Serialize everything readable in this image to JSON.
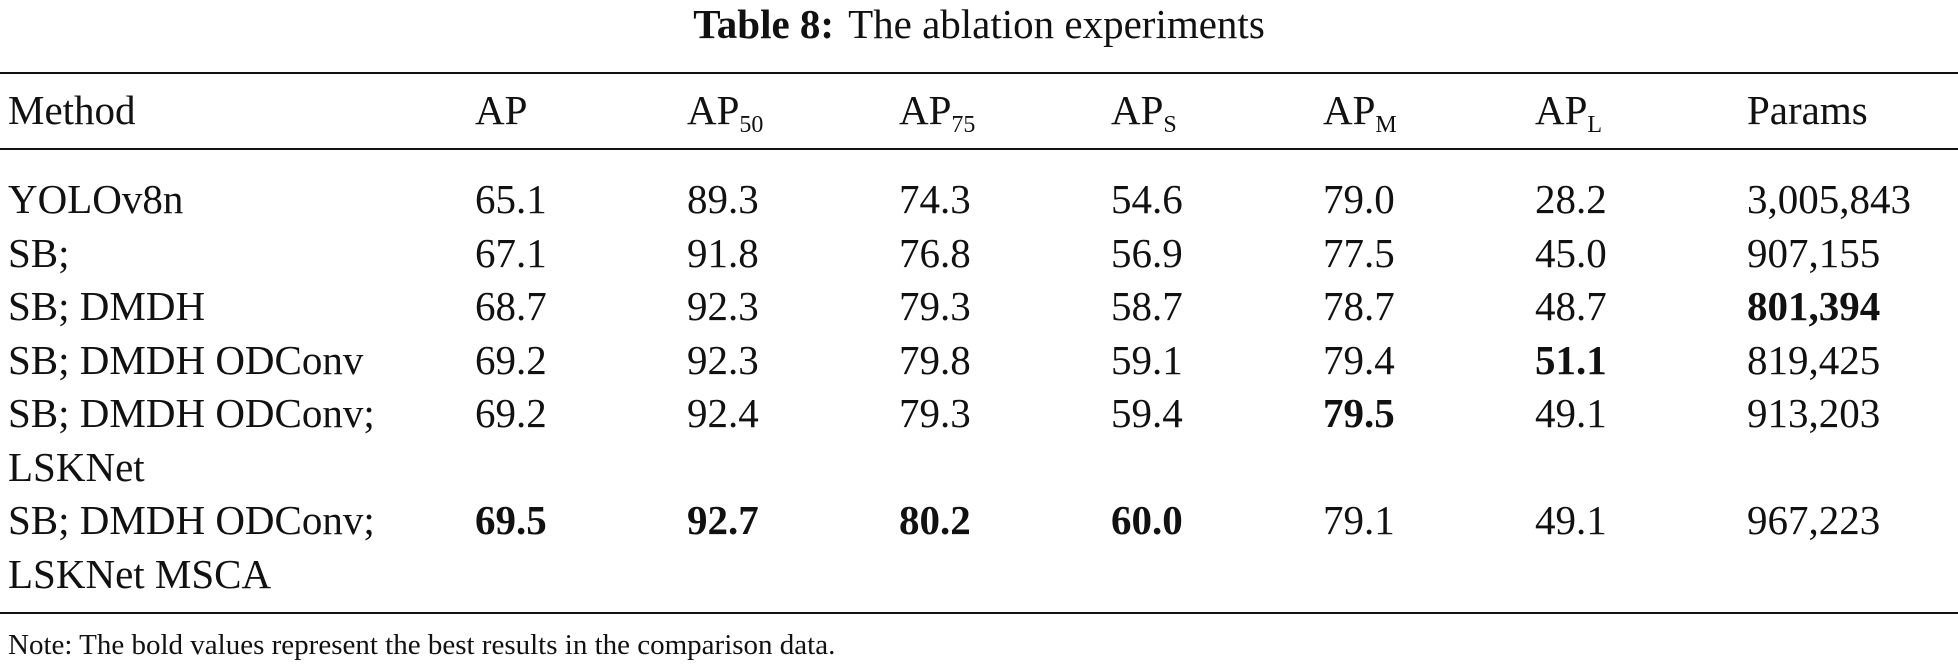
{
  "caption": {
    "label": "Table 8:",
    "text": "The ablation experiments"
  },
  "table": {
    "headers": [
      {
        "main": "Method",
        "sub": ""
      },
      {
        "main": "AP",
        "sub": ""
      },
      {
        "main": "AP",
        "sub": "50"
      },
      {
        "main": "AP",
        "sub": "75"
      },
      {
        "main": "AP",
        "sub": "S"
      },
      {
        "main": "AP",
        "sub": "M"
      },
      {
        "main": "AP",
        "sub": "L"
      },
      {
        "main": "Params",
        "sub": ""
      }
    ],
    "rows": [
      {
        "method": "YOLOv8n",
        "values": [
          "65.1",
          "89.3",
          "74.3",
          "54.6",
          "79.0",
          "28.2",
          "3,005,843"
        ],
        "bold": []
      },
      {
        "method": "SB;",
        "values": [
          "67.1",
          "91.8",
          "76.8",
          "56.9",
          "77.5",
          "45.0",
          "907,155"
        ],
        "bold": []
      },
      {
        "method": "SB; DMDH",
        "values": [
          "68.7",
          "92.3",
          "79.3",
          "58.7",
          "78.7",
          "48.7",
          "801,394"
        ],
        "bold": [
          6
        ]
      },
      {
        "method": "SB; DMDH ODConv",
        "values": [
          "69.2",
          "92.3",
          "79.8",
          "59.1",
          "79.4",
          "51.1",
          "819,425"
        ],
        "bold": [
          5
        ]
      },
      {
        "method": "SB; DMDH ODConv; LSKNet",
        "values": [
          "69.2",
          "92.4",
          "79.3",
          "59.4",
          "79.5",
          "49.1",
          "913,203"
        ],
        "bold": [
          4
        ]
      },
      {
        "method": "SB; DMDH ODConv; LSKNet MSCA",
        "values": [
          "69.5",
          "92.7",
          "80.2",
          "60.0",
          "79.1",
          "49.1",
          "967,223"
        ],
        "bold": [
          0,
          1,
          2,
          3
        ]
      }
    ]
  },
  "note": "Note: The bold values represent the best results in the comparison data."
}
